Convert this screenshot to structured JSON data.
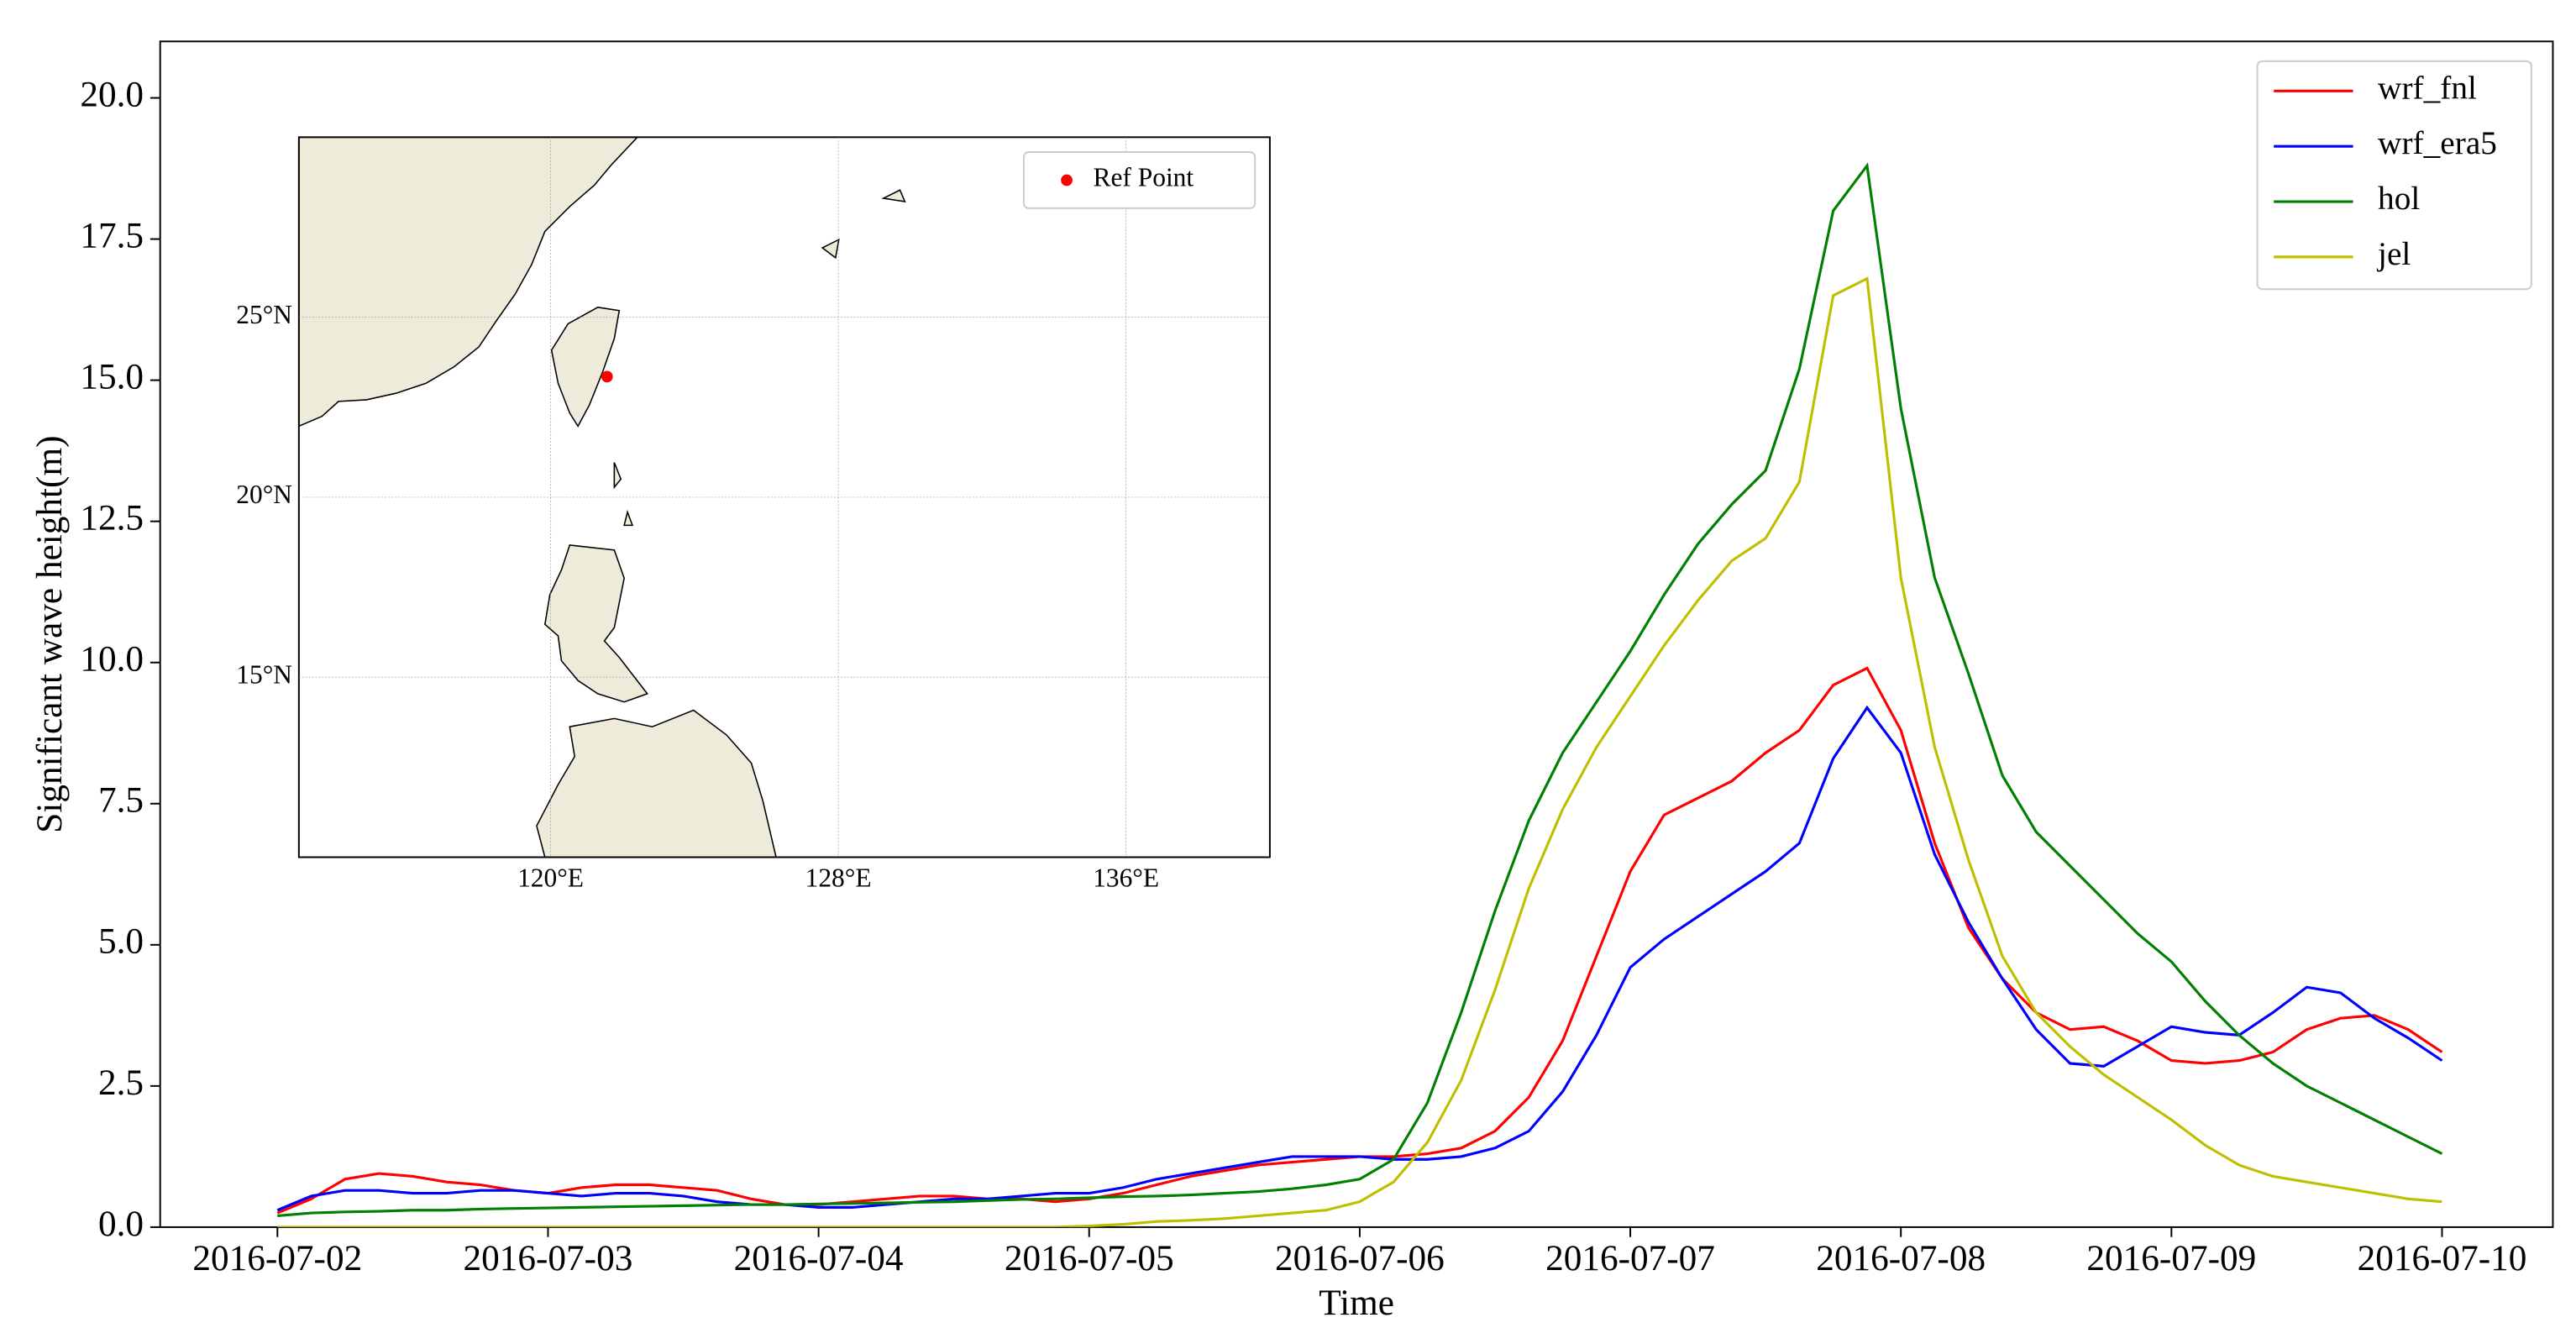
{
  "chart_data": [
    {
      "type": "line",
      "x_label": "Time",
      "y_label": "Significant wave height(m)",
      "x": [
        "2016-07-02T00:00",
        "2016-07-02T03:00",
        "2016-07-02T06:00",
        "2016-07-02T09:00",
        "2016-07-02T12:00",
        "2016-07-02T15:00",
        "2016-07-02T18:00",
        "2016-07-02T21:00",
        "2016-07-03T00:00",
        "2016-07-03T03:00",
        "2016-07-03T06:00",
        "2016-07-03T09:00",
        "2016-07-03T12:00",
        "2016-07-03T15:00",
        "2016-07-03T18:00",
        "2016-07-03T21:00",
        "2016-07-04T00:00",
        "2016-07-04T03:00",
        "2016-07-04T06:00",
        "2016-07-04T09:00",
        "2016-07-04T12:00",
        "2016-07-04T15:00",
        "2016-07-04T18:00",
        "2016-07-04T21:00",
        "2016-07-05T00:00",
        "2016-07-05T03:00",
        "2016-07-05T06:00",
        "2016-07-05T09:00",
        "2016-07-05T12:00",
        "2016-07-05T15:00",
        "2016-07-05T18:00",
        "2016-07-05T21:00",
        "2016-07-06T00:00",
        "2016-07-06T03:00",
        "2016-07-06T06:00",
        "2016-07-06T09:00",
        "2016-07-06T12:00",
        "2016-07-06T15:00",
        "2016-07-06T18:00",
        "2016-07-06T21:00",
        "2016-07-07T00:00",
        "2016-07-07T03:00",
        "2016-07-07T06:00",
        "2016-07-07T09:00",
        "2016-07-07T12:00",
        "2016-07-07T15:00",
        "2016-07-07T18:00",
        "2016-07-07T21:00",
        "2016-07-08T00:00",
        "2016-07-08T03:00",
        "2016-07-08T06:00",
        "2016-07-08T09:00",
        "2016-07-08T12:00",
        "2016-07-08T15:00",
        "2016-07-08T18:00",
        "2016-07-08T21:00",
        "2016-07-09T00:00",
        "2016-07-09T03:00",
        "2016-07-09T06:00",
        "2016-07-09T09:00",
        "2016-07-09T12:00",
        "2016-07-09T15:00",
        "2016-07-09T18:00",
        "2016-07-09T21:00",
        "2016-07-10T00:00"
      ],
      "series": [
        {
          "name": "wrf_fnl",
          "color": "#ff0000",
          "values": [
            0.25,
            0.5,
            0.85,
            0.95,
            0.9,
            0.8,
            0.75,
            0.65,
            0.6,
            0.7,
            0.75,
            0.75,
            0.7,
            0.65,
            0.5,
            0.4,
            0.4,
            0.45,
            0.5,
            0.55,
            0.55,
            0.5,
            0.5,
            0.45,
            0.5,
            0.6,
            0.75,
            0.9,
            1.0,
            1.1,
            1.15,
            1.2,
            1.25,
            1.25,
            1.3,
            1.4,
            1.7,
            2.3,
            3.3,
            4.8,
            6.3,
            7.3,
            7.6,
            7.9,
            8.4,
            8.8,
            9.6,
            9.9,
            8.8,
            6.8,
            5.3,
            4.4,
            3.8,
            3.5,
            3.55,
            3.3,
            2.95,
            2.9,
            2.95,
            3.1,
            3.5,
            3.7,
            3.75,
            3.5,
            3.1
          ]
        },
        {
          "name": "wrf_era5",
          "color": "#0000ff",
          "values": [
            0.3,
            0.55,
            0.65,
            0.65,
            0.6,
            0.6,
            0.65,
            0.65,
            0.6,
            0.55,
            0.6,
            0.6,
            0.55,
            0.45,
            0.4,
            0.4,
            0.35,
            0.35,
            0.4,
            0.45,
            0.5,
            0.5,
            0.55,
            0.6,
            0.6,
            0.7,
            0.85,
            0.95,
            1.05,
            1.15,
            1.25,
            1.25,
            1.25,
            1.2,
            1.2,
            1.25,
            1.4,
            1.7,
            2.4,
            3.4,
            4.6,
            5.1,
            5.5,
            5.9,
            6.3,
            6.8,
            8.3,
            9.2,
            8.4,
            6.6,
            5.4,
            4.4,
            3.5,
            2.9,
            2.85,
            3.2,
            3.55,
            3.45,
            3.4,
            3.8,
            4.25,
            4.15,
            3.7,
            3.35,
            2.95
          ]
        },
        {
          "name": "hol",
          "color": "#008000",
          "values": [
            0.2,
            0.25,
            0.27,
            0.28,
            0.3,
            0.3,
            0.32,
            0.33,
            0.34,
            0.35,
            0.36,
            0.37,
            0.38,
            0.39,
            0.4,
            0.4,
            0.41,
            0.42,
            0.43,
            0.44,
            0.45,
            0.47,
            0.49,
            0.5,
            0.52,
            0.54,
            0.55,
            0.57,
            0.6,
            0.63,
            0.68,
            0.75,
            0.85,
            1.2,
            2.2,
            3.8,
            5.6,
            7.2,
            8.4,
            9.3,
            10.2,
            11.2,
            12.1,
            12.8,
            13.4,
            15.2,
            18.0,
            18.8,
            14.5,
            11.5,
            9.8,
            8.0,
            7.0,
            6.4,
            5.8,
            5.2,
            4.7,
            4.0,
            3.4,
            2.9,
            2.5,
            2.2,
            1.9,
            1.6,
            1.3
          ]
        },
        {
          "name": "jel",
          "color": "#bfbf00",
          "values": [
            0,
            0,
            0,
            0,
            0,
            0,
            0,
            0,
            0,
            0,
            0,
            0,
            0,
            0,
            0,
            0,
            0,
            0,
            0,
            0,
            0,
            0,
            0,
            0,
            0.02,
            0.05,
            0.1,
            0.12,
            0.15,
            0.2,
            0.25,
            0.3,
            0.45,
            0.8,
            1.5,
            2.6,
            4.2,
            6.0,
            7.4,
            8.5,
            9.4,
            10.3,
            11.1,
            11.8,
            12.2,
            13.2,
            16.5,
            16.8,
            11.5,
            8.5,
            6.5,
            4.8,
            3.8,
            3.2,
            2.7,
            2.3,
            1.9,
            1.45,
            1.1,
            0.9,
            0.8,
            0.7,
            0.6,
            0.5,
            0.45
          ]
        }
      ],
      "xlim": [
        "2016-07-01T13:36",
        "2016-07-10T09:50"
      ],
      "xticks": [
        "2016-07-02",
        "2016-07-03",
        "2016-07-04",
        "2016-07-05",
        "2016-07-06",
        "2016-07-07",
        "2016-07-08",
        "2016-07-09",
        "2016-07-10"
      ],
      "ylim": [
        0,
        21
      ],
      "yticks": [
        {
          "value": 0,
          "label": "0.0"
        },
        2.5,
        {
          "value": 5,
          "label": "5.0"
        },
        7.5,
        {
          "value": 10,
          "label": "10.0"
        },
        12.5,
        {
          "value": 15,
          "label": "15.0"
        },
        17.5,
        {
          "value": 20,
          "label": "20.0"
        }
      ],
      "grid": false,
      "legend": "upper right"
    },
    {
      "type": "map",
      "series": [
        {
          "name": "Ref Point",
          "color": "#ff0000",
          "x": [
            121.57
          ],
          "y": [
            23.35
          ]
        }
      ],
      "xlim": [
        113,
        140
      ],
      "ylim": [
        10,
        30
      ],
      "xticks": [
        {
          "value": 120,
          "label": "120°E"
        },
        {
          "value": 128,
          "label": "128°E"
        },
        {
          "value": 136,
          "label": "136°E"
        }
      ],
      "yticks": [
        {
          "value": 15,
          "label": "15°N"
        },
        {
          "value": 20,
          "label": "20°N"
        },
        {
          "value": 25,
          "label": "25°N"
        }
      ],
      "grid": true,
      "legend": "upper right"
    }
  ]
}
